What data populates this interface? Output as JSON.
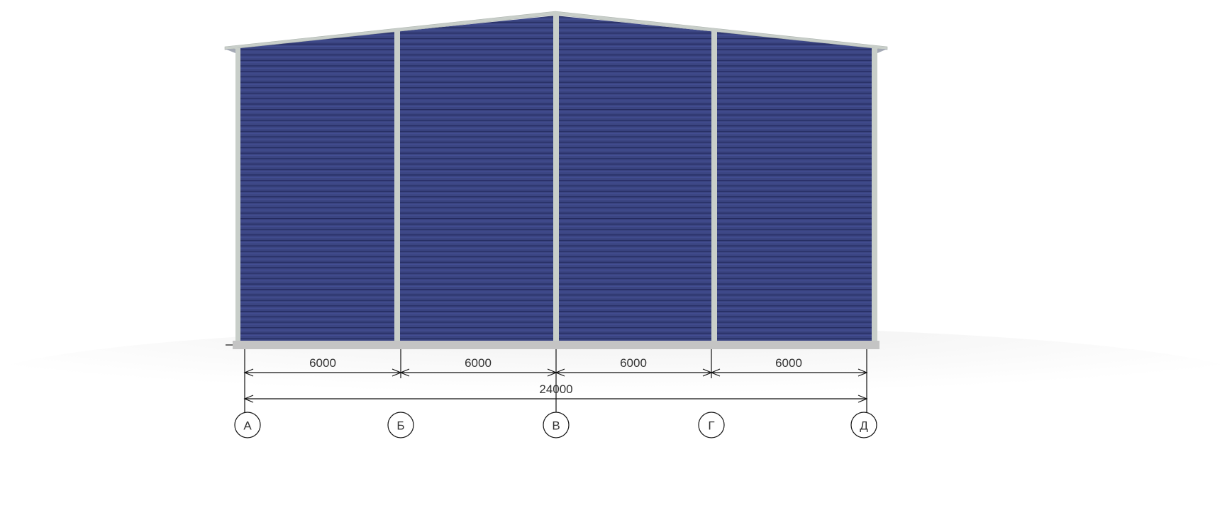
{
  "elevation": {
    "colors": {
      "panel": "#3b4582",
      "panel_rib": "#232a5e",
      "frame": "#c8cec9",
      "base": "#c4c4c4"
    },
    "spans": [
      "6000",
      "6000",
      "6000",
      "6000"
    ],
    "total": "24000",
    "axes": [
      "А",
      "Б",
      "В",
      "Г",
      "Д"
    ]
  }
}
